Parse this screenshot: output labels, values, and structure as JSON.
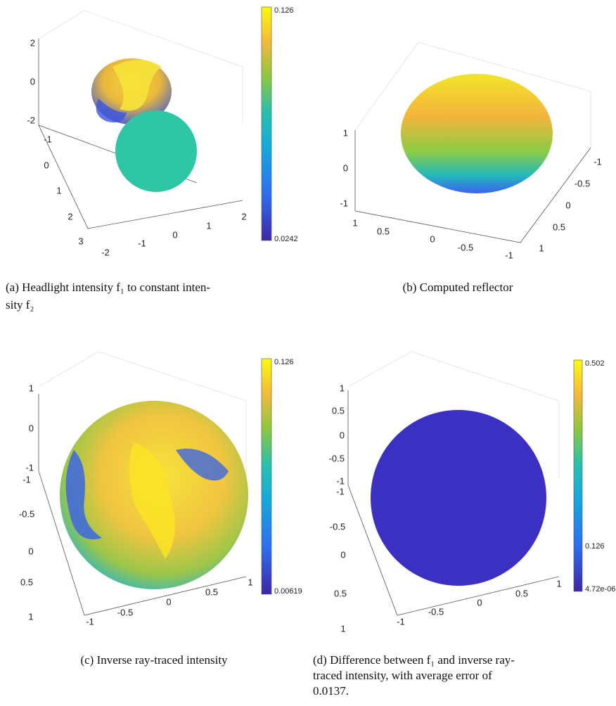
{
  "panels": [
    {
      "z_ticks": [
        "2",
        "0",
        "-2"
      ],
      "y_ticks": [
        "-1",
        "0",
        "1",
        "2",
        "3"
      ],
      "x_ticks": [
        "-2",
        "-1",
        "0",
        "1",
        "2"
      ],
      "colorbar": [
        "0.126",
        "0.0242"
      ],
      "caption": [
        "(a) Headlight intensity f₁ to constant inten-",
        "sity f₂"
      ]
    },
    {
      "z_ticks": [
        "1",
        "0",
        "-1"
      ],
      "y_ticks": [
        "1",
        "0.5",
        "0",
        "-0.5",
        "-1"
      ],
      "x_ticks": [
        "-1",
        "-0.5",
        "0",
        "0.5",
        "1"
      ],
      "colorbar": [],
      "caption": [
        "(b) Computed reflector"
      ]
    },
    {
      "z_ticks": [
        "1",
        "0",
        "-1"
      ],
      "y_ticks": [
        "-1",
        "-0.5",
        "0",
        "0.5",
        "1"
      ],
      "x_ticks": [
        "-1",
        "-0.5",
        "0",
        "0.5",
        "1"
      ],
      "colorbar": [
        "0.126",
        "0.00619"
      ],
      "caption": [
        "(c) Inverse ray-traced intensity"
      ]
    },
    {
      "z_ticks": [
        "1",
        "0.5",
        "0",
        "-0.5",
        "-1"
      ],
      "y_ticks": [
        "-1",
        "-0.5",
        "0",
        "0.5",
        "1"
      ],
      "x_ticks": [
        "-1",
        "-0.5",
        "0",
        "0.5",
        "1"
      ],
      "colorbar": [
        "0.502",
        "0.126",
        "4.72e-06"
      ],
      "caption": [
        "(d) Difference between f₁ and inverse ray-",
        "traced intensity, with average error of",
        "0.0137."
      ]
    }
  ]
}
